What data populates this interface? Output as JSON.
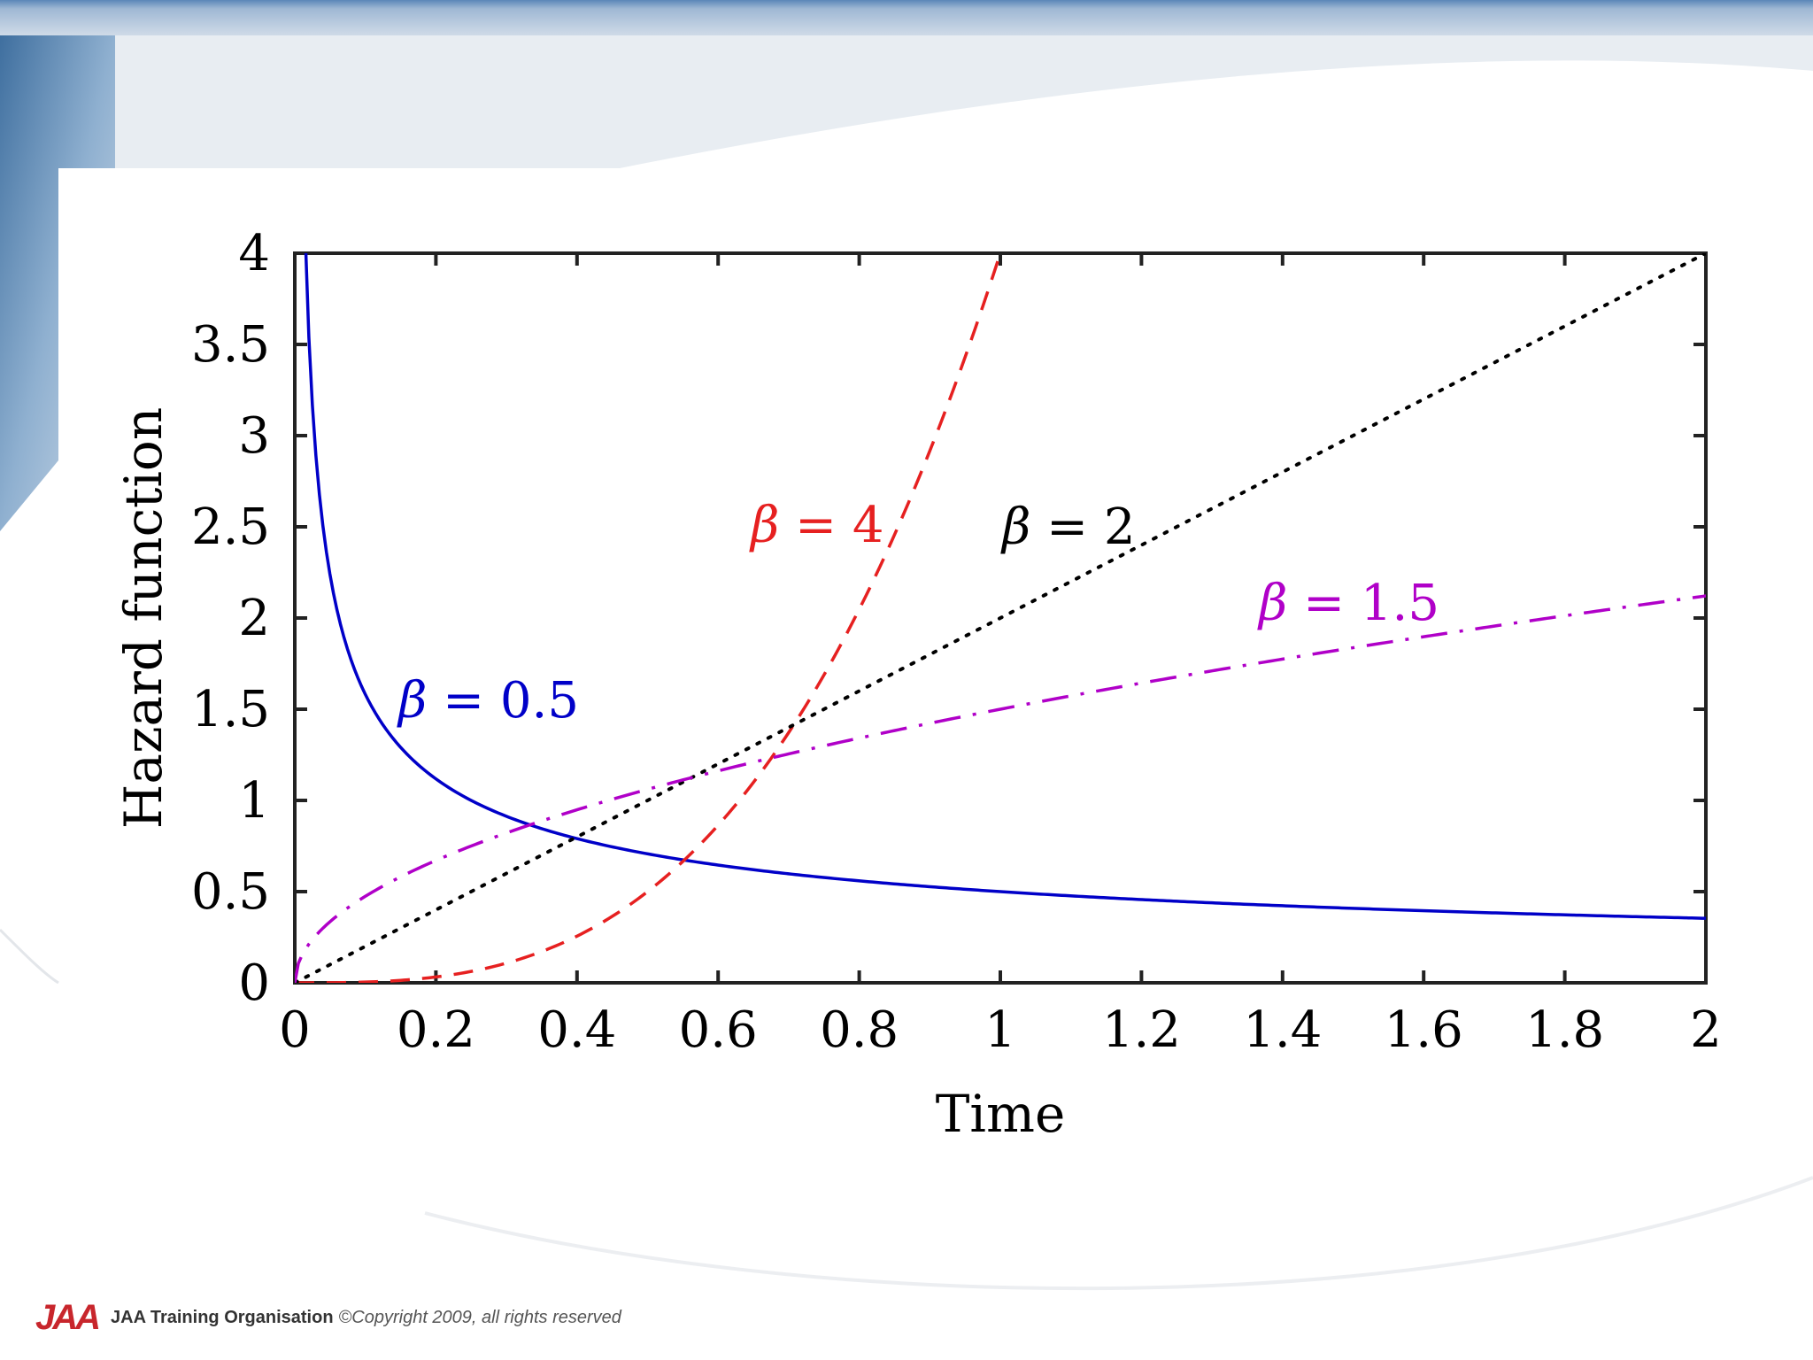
{
  "chart_data": {
    "type": "line",
    "xlabel": "Time",
    "ylabel": "Hazard function",
    "xlim": [
      0,
      2
    ],
    "ylim": [
      0,
      4
    ],
    "xticks": [
      "0",
      "0.2",
      "0.4",
      "0.6",
      "0.8",
      "1",
      "1.2",
      "1.4",
      "1.6",
      "1.8",
      "2"
    ],
    "yticks": [
      "0",
      "0.5",
      "1",
      "1.5",
      "2",
      "2.5",
      "3",
      "3.5",
      "4"
    ],
    "grid": false,
    "series": [
      {
        "symbol": "β",
        "label": " = 0.5",
        "shape": 0.5,
        "color": "#0000c8",
        "dash": "solid",
        "x": [
          0.016,
          0.02,
          0.03,
          0.05,
          0.075,
          0.1,
          0.15,
          0.2,
          0.3,
          0.4,
          0.5,
          0.6,
          0.8,
          1.0,
          1.2,
          1.4,
          1.6,
          1.8,
          2.0
        ],
        "y": [
          3.95,
          3.54,
          2.89,
          2.24,
          1.83,
          1.58,
          1.29,
          1.12,
          0.91,
          0.79,
          0.71,
          0.65,
          0.56,
          0.5,
          0.46,
          0.42,
          0.4,
          0.37,
          0.35
        ]
      },
      {
        "symbol": "β",
        "label": " = 4",
        "shape": 4,
        "color": "#e62020",
        "dash": "dashed",
        "x": [
          0.0,
          0.1,
          0.2,
          0.3,
          0.4,
          0.5,
          0.6,
          0.7,
          0.8,
          0.9,
          1.0
        ],
        "y": [
          0.0,
          0.004,
          0.032,
          0.108,
          0.256,
          0.5,
          0.864,
          1.372,
          2.048,
          2.916,
          4.0
        ]
      },
      {
        "symbol": "β",
        "label": " = 2",
        "shape": 2,
        "color": "#000000",
        "dash": "dotted",
        "x": [
          0.0,
          0.5,
          1.0,
          1.5,
          2.0
        ],
        "y": [
          0.0,
          1.0,
          2.0,
          3.0,
          4.0
        ]
      },
      {
        "symbol": "β",
        "label": " = 1.5",
        "shape": 1.5,
        "color": "#b000c8",
        "dash": "dash-dot",
        "x": [
          0.0,
          0.01,
          0.03,
          0.05,
          0.1,
          0.2,
          0.3,
          0.4,
          0.6,
          0.8,
          1.0,
          1.2,
          1.4,
          1.6,
          1.8,
          2.0
        ],
        "y": [
          0.0,
          0.15,
          0.26,
          0.34,
          0.47,
          0.67,
          0.82,
          0.95,
          1.16,
          1.34,
          1.5,
          1.64,
          1.77,
          1.9,
          2.01,
          2.12
        ]
      }
    ]
  },
  "footer": {
    "logo": "JAA",
    "organisation": "JAA Training Organisation",
    "copyright": "©Copyright 2009, all rights reserved"
  }
}
